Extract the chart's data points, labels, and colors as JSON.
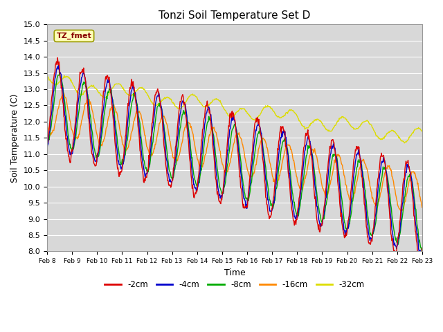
{
  "title": "Tonzi Soil Temperature Set D",
  "xlabel": "Time",
  "ylabel": "Soil Temperature (C)",
  "ylim": [
    8.0,
    15.0
  ],
  "yticks": [
    8.0,
    8.5,
    9.0,
    9.5,
    10.0,
    10.5,
    11.0,
    11.5,
    12.0,
    12.5,
    13.0,
    13.5,
    14.0,
    14.5,
    15.0
  ],
  "xtick_labels": [
    "Feb 8",
    "Feb 9",
    "Feb 10",
    "Feb 11",
    "Feb 12",
    "Feb 13",
    "Feb 14",
    "Feb 15",
    "Feb 16",
    "Feb 17",
    "Feb 18",
    "Feb 19",
    "Feb 20",
    "Feb 21",
    "Feb 22",
    "Feb 23"
  ],
  "legend_label": "TZ_fmet",
  "series_labels": [
    "-2cm",
    "-4cm",
    "-8cm",
    "-16cm",
    "-32cm"
  ],
  "series_colors": [
    "#dd0000",
    "#0000cc",
    "#00aa00",
    "#ff8800",
    "#dddd00"
  ],
  "line_width": 1.0,
  "figure_facecolor": "#ffffff",
  "plot_facecolor": "#d8d8d8",
  "grid_color": "#ffffff",
  "n_points": 720,
  "n_days": 15
}
